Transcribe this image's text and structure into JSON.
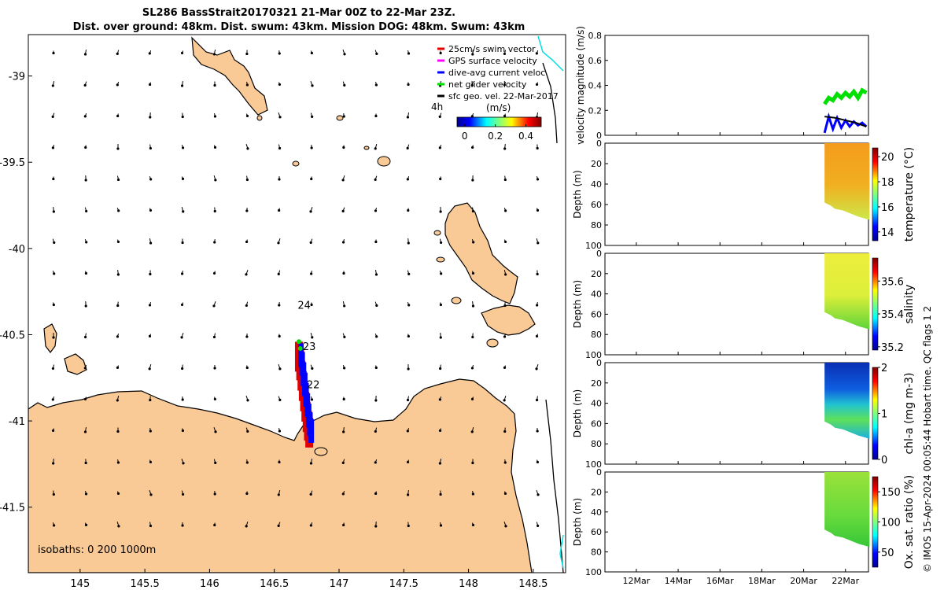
{
  "header": {
    "title_line1": "SL286 BassStrait20170321 21-Mar 00Z to 22-Mar 23Z.",
    "title_line2": "Dist. over ground: 48km. Dist. swum: 43km. Mission DOG: 48km. Swum: 43km"
  },
  "map": {
    "x_ticks": [
      "145",
      "145.5",
      "146",
      "146.5",
      "147",
      "147.5",
      "148",
      "148.5"
    ],
    "x_tick_values": [
      145,
      145.5,
      146,
      146.5,
      147,
      147.5,
      148,
      148.5
    ],
    "y_ticks": [
      "-39",
      "-39.5",
      "-40",
      "-40.5",
      "-41",
      "-41.5"
    ],
    "y_tick_values": [
      -39,
      -39.5,
      -40,
      -40.5,
      -41,
      -41.5
    ],
    "xlim": [
      144.6,
      148.75
    ],
    "ylim": [
      -41.88,
      -38.76
    ],
    "legend": [
      {
        "label": "25cm/s swim vector",
        "color": "#e00000"
      },
      {
        "label": "GPS surface velocity",
        "color": "#ff00ff"
      },
      {
        "label": "dive-avg current veloc.",
        "color": "#0000ff"
      },
      {
        "label": "net glider velocity",
        "color": "#00e000"
      },
      {
        "label": "sfc geo. vel. 22-Mar-2017",
        "color": "#000000"
      }
    ],
    "legend_note": "4h",
    "colorbar_label": "(m/s)",
    "colorbar_ticks": [
      "0",
      "0.2",
      "0.4"
    ],
    "colorbar_tick_values": [
      0,
      0.2,
      0.4
    ],
    "colorbar_range": [
      -0.05,
      0.5
    ],
    "day_labels": [
      {
        "text": "24",
        "lon": 146.68,
        "lat": -40.35
      },
      {
        "text": "23",
        "lon": 146.72,
        "lat": -40.59
      },
      {
        "text": "22",
        "lon": 146.75,
        "lat": -40.81
      }
    ],
    "isobaths_note": "isobaths: 0   200  1000m",
    "land_color": "#f9c996",
    "track_color": "#e00000",
    "current_color": "#0000ff",
    "glider_color": "#00e000",
    "isobath_color": "#00e0e0"
  },
  "time_axis": {
    "ticks": [
      "12Mar",
      "14Mar",
      "16Mar",
      "18Mar",
      "20Mar",
      "22Mar"
    ],
    "tick_days": [
      12,
      14,
      16,
      18,
      20,
      22
    ],
    "range_days": [
      10.5,
      23.1
    ]
  },
  "panels": [
    {
      "ylabel": "velocity magnitude (m/s)",
      "yticks": [
        "0",
        "0.2",
        "0.4",
        "0.6",
        "0.8"
      ],
      "ytick_values": [
        0,
        0.2,
        0.4,
        0.6,
        0.8
      ],
      "ylim": [
        0,
        0.8
      ]
    },
    {
      "ylabel": "Depth (m)",
      "yticks": [
        "0",
        "20",
        "40",
        "60",
        "80",
        "100"
      ],
      "ytick_values": [
        0,
        20,
        40,
        60,
        80,
        100
      ],
      "ylim": [
        0,
        100
      ],
      "cbar_label": "temperature (°C)",
      "cbar_ticks": [
        "14",
        "16",
        "18",
        "20"
      ],
      "cbar_values": [
        14,
        16,
        18,
        20
      ],
      "cbar_range": [
        13.3,
        20.7
      ]
    },
    {
      "ylabel": "Depth (m)",
      "yticks": [
        "0",
        "20",
        "40",
        "60",
        "80",
        "100"
      ],
      "ytick_values": [
        0,
        20,
        40,
        60,
        80,
        100
      ],
      "ylim": [
        0,
        100
      ],
      "cbar_label": "salinity",
      "cbar_ticks": [
        "35.2",
        "35.4",
        "35.6"
      ],
      "cbar_values": [
        35.2,
        35.4,
        35.6
      ],
      "cbar_range": [
        35.18,
        35.74
      ]
    },
    {
      "ylabel": "Depth (m)",
      "yticks": [
        "0",
        "20",
        "40",
        "60",
        "80",
        "100"
      ],
      "ytick_values": [
        0,
        20,
        40,
        60,
        80,
        100
      ],
      "ylim": [
        0,
        100
      ],
      "cbar_label": "chl-a (mg m-3)",
      "cbar_ticks": [
        "0",
        "1",
        "2"
      ],
      "cbar_values": [
        0,
        1,
        2
      ],
      "cbar_range": [
        0,
        2
      ]
    },
    {
      "ylabel": "Depth (m)",
      "yticks": [
        "0",
        "20",
        "40",
        "60",
        "80",
        "100"
      ],
      "ytick_values": [
        0,
        20,
        40,
        60,
        80,
        100
      ],
      "ylim": [
        0,
        100
      ],
      "cbar_label": "Ox. sat. ratio (%)",
      "cbar_ticks": [
        "50",
        "100",
        "150"
      ],
      "cbar_values": [
        50,
        100,
        150
      ],
      "cbar_range": [
        25,
        175
      ]
    }
  ],
  "credit": "© IMOS 15-Apr-2024 00:05:44 Hobart time. QC flags 1  2",
  "chart_data": [
    {
      "type": "scatter",
      "title": "SL286 BassStrait20170321 21-Mar 00Z to 22-Mar 23Z.",
      "xlim": [
        144.6,
        148.75
      ],
      "ylim": [
        -41.88,
        -38.76
      ],
      "series": [
        {
          "name": "dive-avg current veloc.",
          "x": [
            146.69,
            146.7,
            146.71,
            146.72,
            146.73,
            146.74,
            146.75,
            146.76,
            146.77
          ],
          "y": [
            -40.55,
            -40.6,
            -40.66,
            -40.72,
            -40.78,
            -40.84,
            -40.9,
            -40.95,
            -40.99
          ]
        },
        {
          "name": "net glider velocity",
          "x": [
            146.69,
            146.7
          ],
          "y": [
            -40.54,
            -40.58
          ]
        }
      ]
    },
    {
      "type": "line",
      "xlabel": "",
      "ylabel": "velocity magnitude (m/s)",
      "ylim": [
        0,
        0.8
      ],
      "series": [
        {
          "name": "net glider velocity",
          "x": [
            21.0,
            21.2,
            21.4,
            21.6,
            21.8,
            22.0,
            22.2,
            22.4,
            22.6,
            22.8,
            23.0
          ],
          "y": [
            0.25,
            0.3,
            0.28,
            0.33,
            0.3,
            0.34,
            0.31,
            0.35,
            0.3,
            0.36,
            0.34
          ]
        },
        {
          "name": "dive-avg current veloc.",
          "x": [
            21.0,
            21.2,
            21.4,
            21.6,
            21.8,
            22.0,
            22.2,
            22.4,
            22.6,
            22.8,
            23.0
          ],
          "y": [
            0.02,
            0.15,
            0.05,
            0.14,
            0.06,
            0.12,
            0.07,
            0.11,
            0.08,
            0.1,
            0.07
          ]
        },
        {
          "name": "sfc geo. vel. 22-Mar-2017",
          "x": [
            21.0,
            21.5,
            22.0,
            22.5,
            23.0
          ],
          "y": [
            0.15,
            0.14,
            0.12,
            0.1,
            0.07
          ]
        }
      ]
    },
    {
      "type": "heatmap",
      "ylabel": "Depth (m)",
      "colorbar": "temperature (°C)",
      "x_range": [
        21.0,
        23.0
      ],
      "depth_range": [
        0,
        75
      ],
      "surface_value": 19.5,
      "deep_value": 17.5
    },
    {
      "type": "heatmap",
      "ylabel": "Depth (m)",
      "colorbar": "salinity",
      "x_range": [
        21.0,
        23.0
      ],
      "depth_range": [
        0,
        75
      ],
      "surface_value": 35.6,
      "deep_value": 35.45
    },
    {
      "type": "heatmap",
      "ylabel": "Depth (m)",
      "colorbar": "chl-a (mg m-3)",
      "x_range": [
        21.0,
        23.0
      ],
      "depth_range": [
        0,
        75
      ],
      "surface_value": 0.3,
      "deep_value": 1.2
    },
    {
      "type": "heatmap",
      "ylabel": "Depth (m)",
      "colorbar": "Ox. sat. ratio (%)",
      "x_range": [
        21.0,
        23.0
      ],
      "depth_range": [
        0,
        75
      ],
      "surface_value": 112,
      "deep_value": 105
    }
  ]
}
